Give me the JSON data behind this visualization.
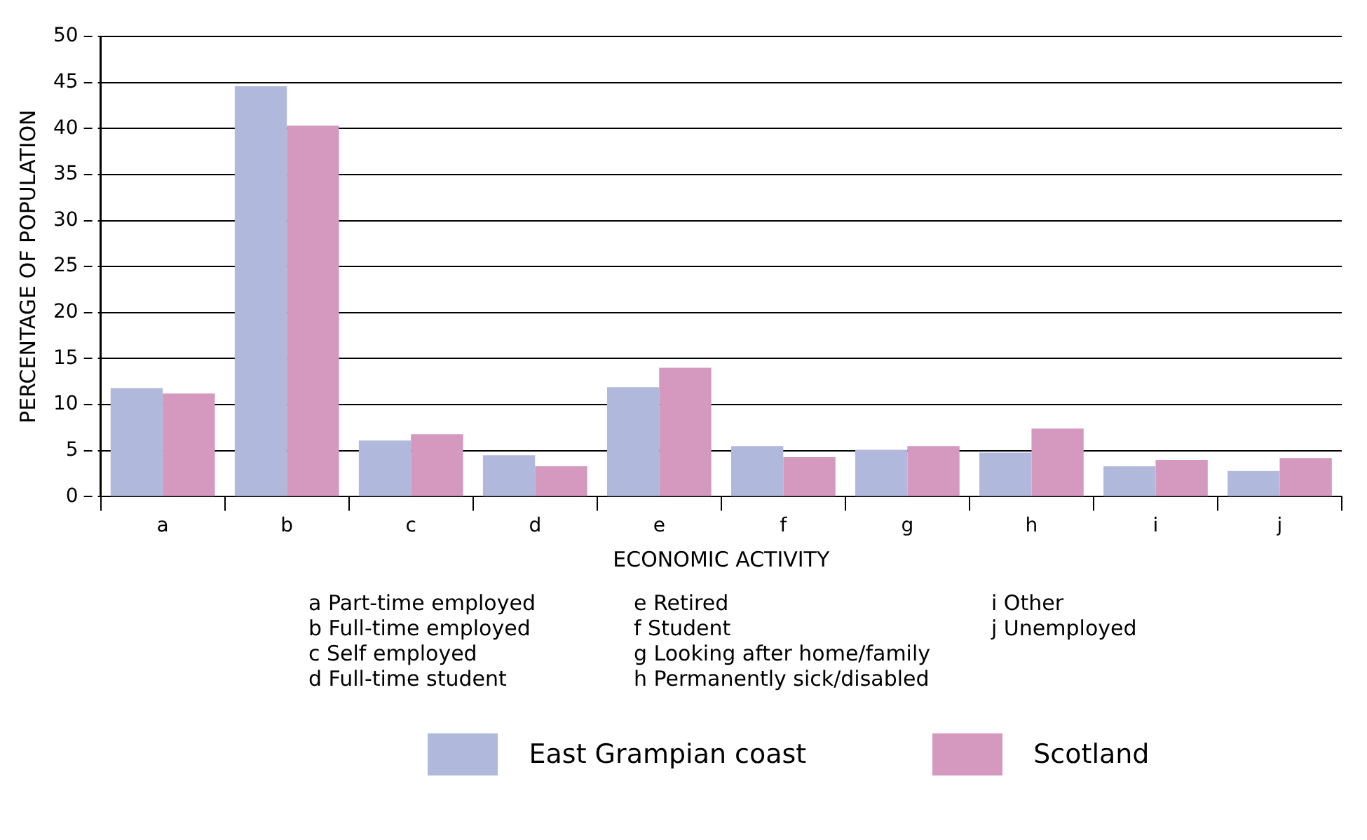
{
  "chart_data": {
    "type": "bar",
    "xlabel": "ECONOMIC ACTIVITY",
    "ylabel": "PERCENTAGE OF POPULATION",
    "categories": [
      "a",
      "b",
      "c",
      "d",
      "e",
      "f",
      "g",
      "h",
      "i",
      "j"
    ],
    "series": [
      {
        "name": "East Grampian coast",
        "color": "#b0b9db",
        "values": [
          11.8,
          44.6,
          6.1,
          4.5,
          11.9,
          5.5,
          5.1,
          4.8,
          3.3,
          2.8
        ]
      },
      {
        "name": "Scotland",
        "color": "#d598be",
        "values": [
          11.2,
          40.3,
          6.8,
          3.3,
          14.0,
          4.3,
          5.5,
          7.4,
          4.0,
          4.2
        ]
      }
    ],
    "ylim": [
      0,
      50
    ],
    "yticks": [
      0,
      5,
      10,
      15,
      20,
      25,
      30,
      35,
      40,
      45,
      50
    ],
    "grid": "y",
    "legend": "bottom",
    "annotations": [
      "a Part-time employed",
      "b Full-time employed",
      "c Self employed",
      "d Full-time student",
      "e Retired",
      "f Student",
      "g Looking after home/family",
      "h Permanently sick/disabled",
      "i Other",
      "j Unemployed"
    ]
  }
}
